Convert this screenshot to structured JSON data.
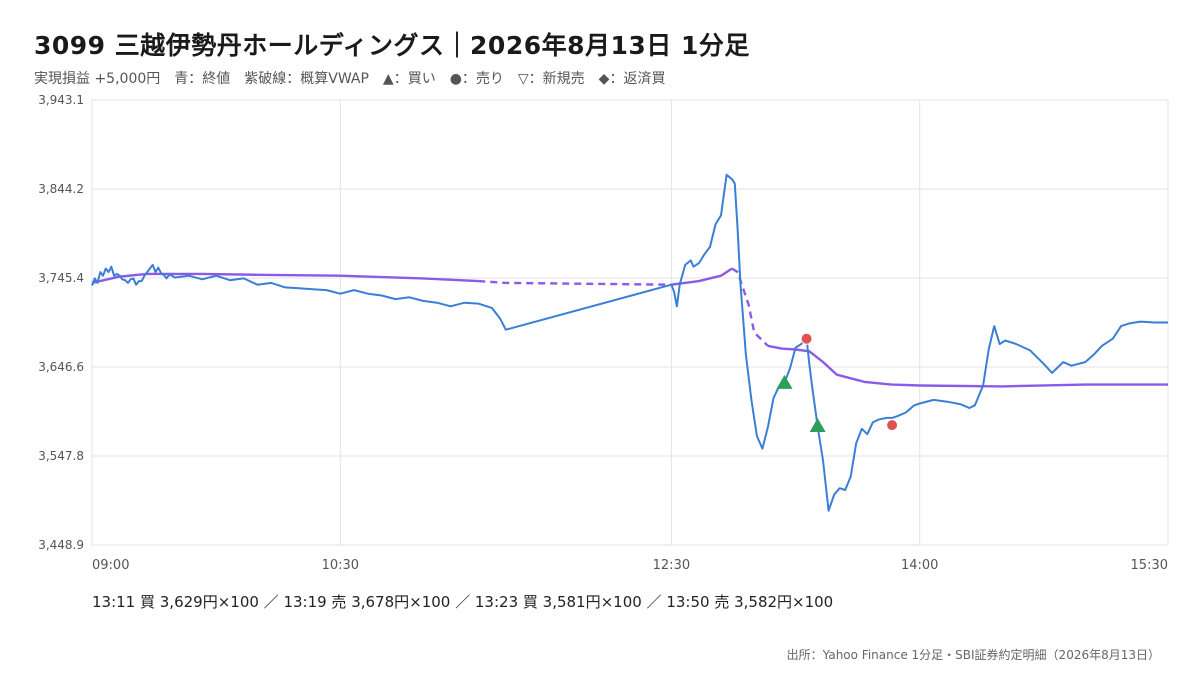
{
  "header": {
    "title": "3099 三越伊勢丹ホールディングス｜2026年8月13日 1分足",
    "subtitle": "実現損益 +5,000円　青：終値　紫破線：概算VWAP　▲：買い　●：売り　▽：新規売　◆：返済買"
  },
  "footer": {
    "trades_line": "13:11 買 3,629円×100 ／ 13:19 売 3,678円×100 ／ 13:23 買 3,581円×100 ／ 13:50 売 3,582円×100",
    "source": "出所：Yahoo Finance 1分足・SBI証券約定明細（2026年8月13日）"
  },
  "colors": {
    "price": "#3a7fd5",
    "vwap": "#8a5be8",
    "buy": "#2e9e5b",
    "sell": "#e05252",
    "grid": "#e3e3e3",
    "axis_text": "#555555"
  },
  "chart_data": {
    "type": "line",
    "xlim": [
      "09:00",
      "15:30"
    ],
    "ylim": [
      3448.9,
      3943.1
    ],
    "y_ticks": [
      "3,943.1",
      "3,844.2",
      "3,745.4",
      "3,646.6",
      "3,547.8",
      "3,448.9"
    ],
    "y_tick_values": [
      3943.1,
      3844.2,
      3745.4,
      3646.6,
      3547.8,
      3448.9
    ],
    "x_ticks": [
      "09:00",
      "10:30",
      "12:30",
      "14:00",
      "15:30"
    ],
    "grid": true,
    "series": [
      {
        "key": "close",
        "points": [
          [
            "09:00",
            3737
          ],
          [
            "09:01",
            3745
          ],
          [
            "09:02",
            3740
          ],
          [
            "09:03",
            3752
          ],
          [
            "09:04",
            3748
          ],
          [
            "09:05",
            3756
          ],
          [
            "09:06",
            3752
          ],
          [
            "09:07",
            3758
          ],
          [
            "09:08",
            3748
          ],
          [
            "09:09",
            3750
          ],
          [
            "09:10",
            3748
          ],
          [
            "09:11",
            3744
          ],
          [
            "09:12",
            3743
          ],
          [
            "09:13",
            3740
          ],
          [
            "09:14",
            3744
          ],
          [
            "09:15",
            3745
          ],
          [
            "09:16",
            3738
          ],
          [
            "09:17",
            3742
          ],
          [
            "09:18",
            3742
          ],
          [
            "09:19",
            3748
          ],
          [
            "09:20",
            3752
          ],
          [
            "09:21",
            3756
          ],
          [
            "09:22",
            3760
          ],
          [
            "09:23",
            3752
          ],
          [
            "09:24",
            3757
          ],
          [
            "09:25",
            3751
          ],
          [
            "09:26",
            3749
          ],
          [
            "09:27",
            3745
          ],
          [
            "09:28",
            3749
          ],
          [
            "09:29",
            3748
          ],
          [
            "09:30",
            3746
          ],
          [
            "09:35",
            3748
          ],
          [
            "09:40",
            3744
          ],
          [
            "09:45",
            3748
          ],
          [
            "09:50",
            3743
          ],
          [
            "09:55",
            3745
          ],
          [
            "10:00",
            3738
          ],
          [
            "10:05",
            3740
          ],
          [
            "10:10",
            3735
          ],
          [
            "10:15",
            3734
          ],
          [
            "10:20",
            3733
          ],
          [
            "10:25",
            3732
          ],
          [
            "10:30",
            3728
          ],
          [
            "10:35",
            3732
          ],
          [
            "10:40",
            3728
          ],
          [
            "10:45",
            3726
          ],
          [
            "10:50",
            3722
          ],
          [
            "10:55",
            3724
          ],
          [
            "11:00",
            3720
          ],
          [
            "11:05",
            3718
          ],
          [
            "11:10",
            3714
          ],
          [
            "11:15",
            3718
          ],
          [
            "11:20",
            3717
          ],
          [
            "11:25",
            3712
          ],
          [
            "11:28",
            3700
          ],
          [
            "11:30",
            3688
          ],
          [
            "12:30",
            3738
          ],
          [
            "12:31",
            3730
          ],
          [
            "12:32",
            3714
          ],
          [
            "12:33",
            3738
          ],
          [
            "12:35",
            3760
          ],
          [
            "12:37",
            3765
          ],
          [
            "12:38",
            3758
          ],
          [
            "12:40",
            3762
          ],
          [
            "12:42",
            3772
          ],
          [
            "12:44",
            3780
          ],
          [
            "12:46",
            3805
          ],
          [
            "12:48",
            3815
          ],
          [
            "12:50",
            3860
          ],
          [
            "12:52",
            3855
          ],
          [
            "12:53",
            3850
          ],
          [
            "12:54",
            3800
          ],
          [
            "12:55",
            3740
          ],
          [
            "12:57",
            3660
          ],
          [
            "12:59",
            3610
          ],
          [
            "13:01",
            3570
          ],
          [
            "13:03",
            3556
          ],
          [
            "13:05",
            3580
          ],
          [
            "13:07",
            3612
          ],
          [
            "13:09",
            3625
          ],
          [
            "13:11",
            3629
          ],
          [
            "13:13",
            3645
          ],
          [
            "13:15",
            3668
          ],
          [
            "13:17",
            3672
          ],
          [
            "13:19",
            3678
          ],
          [
            "13:20",
            3650
          ],
          [
            "13:21",
            3625
          ],
          [
            "13:23",
            3581
          ],
          [
            "13:25",
            3542
          ],
          [
            "13:27",
            3487
          ],
          [
            "13:29",
            3505
          ],
          [
            "13:31",
            3512
          ],
          [
            "13:33",
            3510
          ],
          [
            "13:35",
            3525
          ],
          [
            "13:37",
            3562
          ],
          [
            "13:39",
            3578
          ],
          [
            "13:41",
            3572
          ],
          [
            "13:43",
            3585
          ],
          [
            "13:45",
            3588
          ],
          [
            "13:48",
            3590
          ],
          [
            "13:50",
            3590
          ],
          [
            "13:52",
            3592
          ],
          [
            "13:55",
            3596
          ],
          [
            "13:58",
            3604
          ],
          [
            "14:00",
            3606
          ],
          [
            "14:05",
            3610
          ],
          [
            "14:10",
            3608
          ],
          [
            "14:15",
            3605
          ],
          [
            "14:18",
            3601
          ],
          [
            "14:20",
            3604
          ],
          [
            "14:23",
            3626
          ],
          [
            "14:25",
            3666
          ],
          [
            "14:27",
            3692
          ],
          [
            "14:29",
            3672
          ],
          [
            "14:31",
            3676
          ],
          [
            "14:35",
            3672
          ],
          [
            "14:40",
            3665
          ],
          [
            "14:45",
            3650
          ],
          [
            "14:48",
            3640
          ],
          [
            "14:52",
            3652
          ],
          [
            "14:55",
            3648
          ],
          [
            "15:00",
            3652
          ],
          [
            "15:03",
            3660
          ],
          [
            "15:06",
            3670
          ],
          [
            "15:10",
            3678
          ],
          [
            "15:13",
            3692
          ],
          [
            "15:16",
            3695
          ],
          [
            "15:20",
            3697
          ],
          [
            "15:25",
            3696
          ],
          [
            "15:30",
            3696
          ]
        ]
      },
      {
        "key": "vwap",
        "points": [
          [
            "09:00",
            3740
          ],
          [
            "09:10",
            3747
          ],
          [
            "09:20",
            3750
          ],
          [
            "09:40",
            3750
          ],
          [
            "10:00",
            3749
          ],
          [
            "10:30",
            3748
          ],
          [
            "11:00",
            3745
          ],
          [
            "11:20",
            3742
          ],
          [
            "11:30",
            3740
          ],
          [
            "12:30",
            3738
          ],
          [
            "12:40",
            3742
          ],
          [
            "12:48",
            3748
          ],
          [
            "12:52",
            3756
          ],
          [
            "12:54",
            3752
          ],
          [
            "12:58",
            3716
          ],
          [
            "13:00",
            3685
          ],
          [
            "13:05",
            3670
          ],
          [
            "13:10",
            3667
          ],
          [
            "13:15",
            3666
          ],
          [
            "13:20",
            3664
          ],
          [
            "13:25",
            3652
          ],
          [
            "13:30",
            3638
          ],
          [
            "13:40",
            3630
          ],
          [
            "13:50",
            3627
          ],
          [
            "14:00",
            3626
          ],
          [
            "14:30",
            3625
          ],
          [
            "15:00",
            3627
          ],
          [
            "15:30",
            3627
          ]
        ]
      }
    ],
    "trades": [
      {
        "time": "13:11",
        "side": "buy",
        "price": 3629,
        "qty": 100
      },
      {
        "time": "13:19",
        "side": "sell",
        "price": 3678,
        "qty": 100
      },
      {
        "time": "13:23",
        "side": "buy",
        "price": 3581,
        "qty": 100
      },
      {
        "time": "13:50",
        "side": "sell",
        "price": 3582,
        "qty": 100
      }
    ]
  }
}
